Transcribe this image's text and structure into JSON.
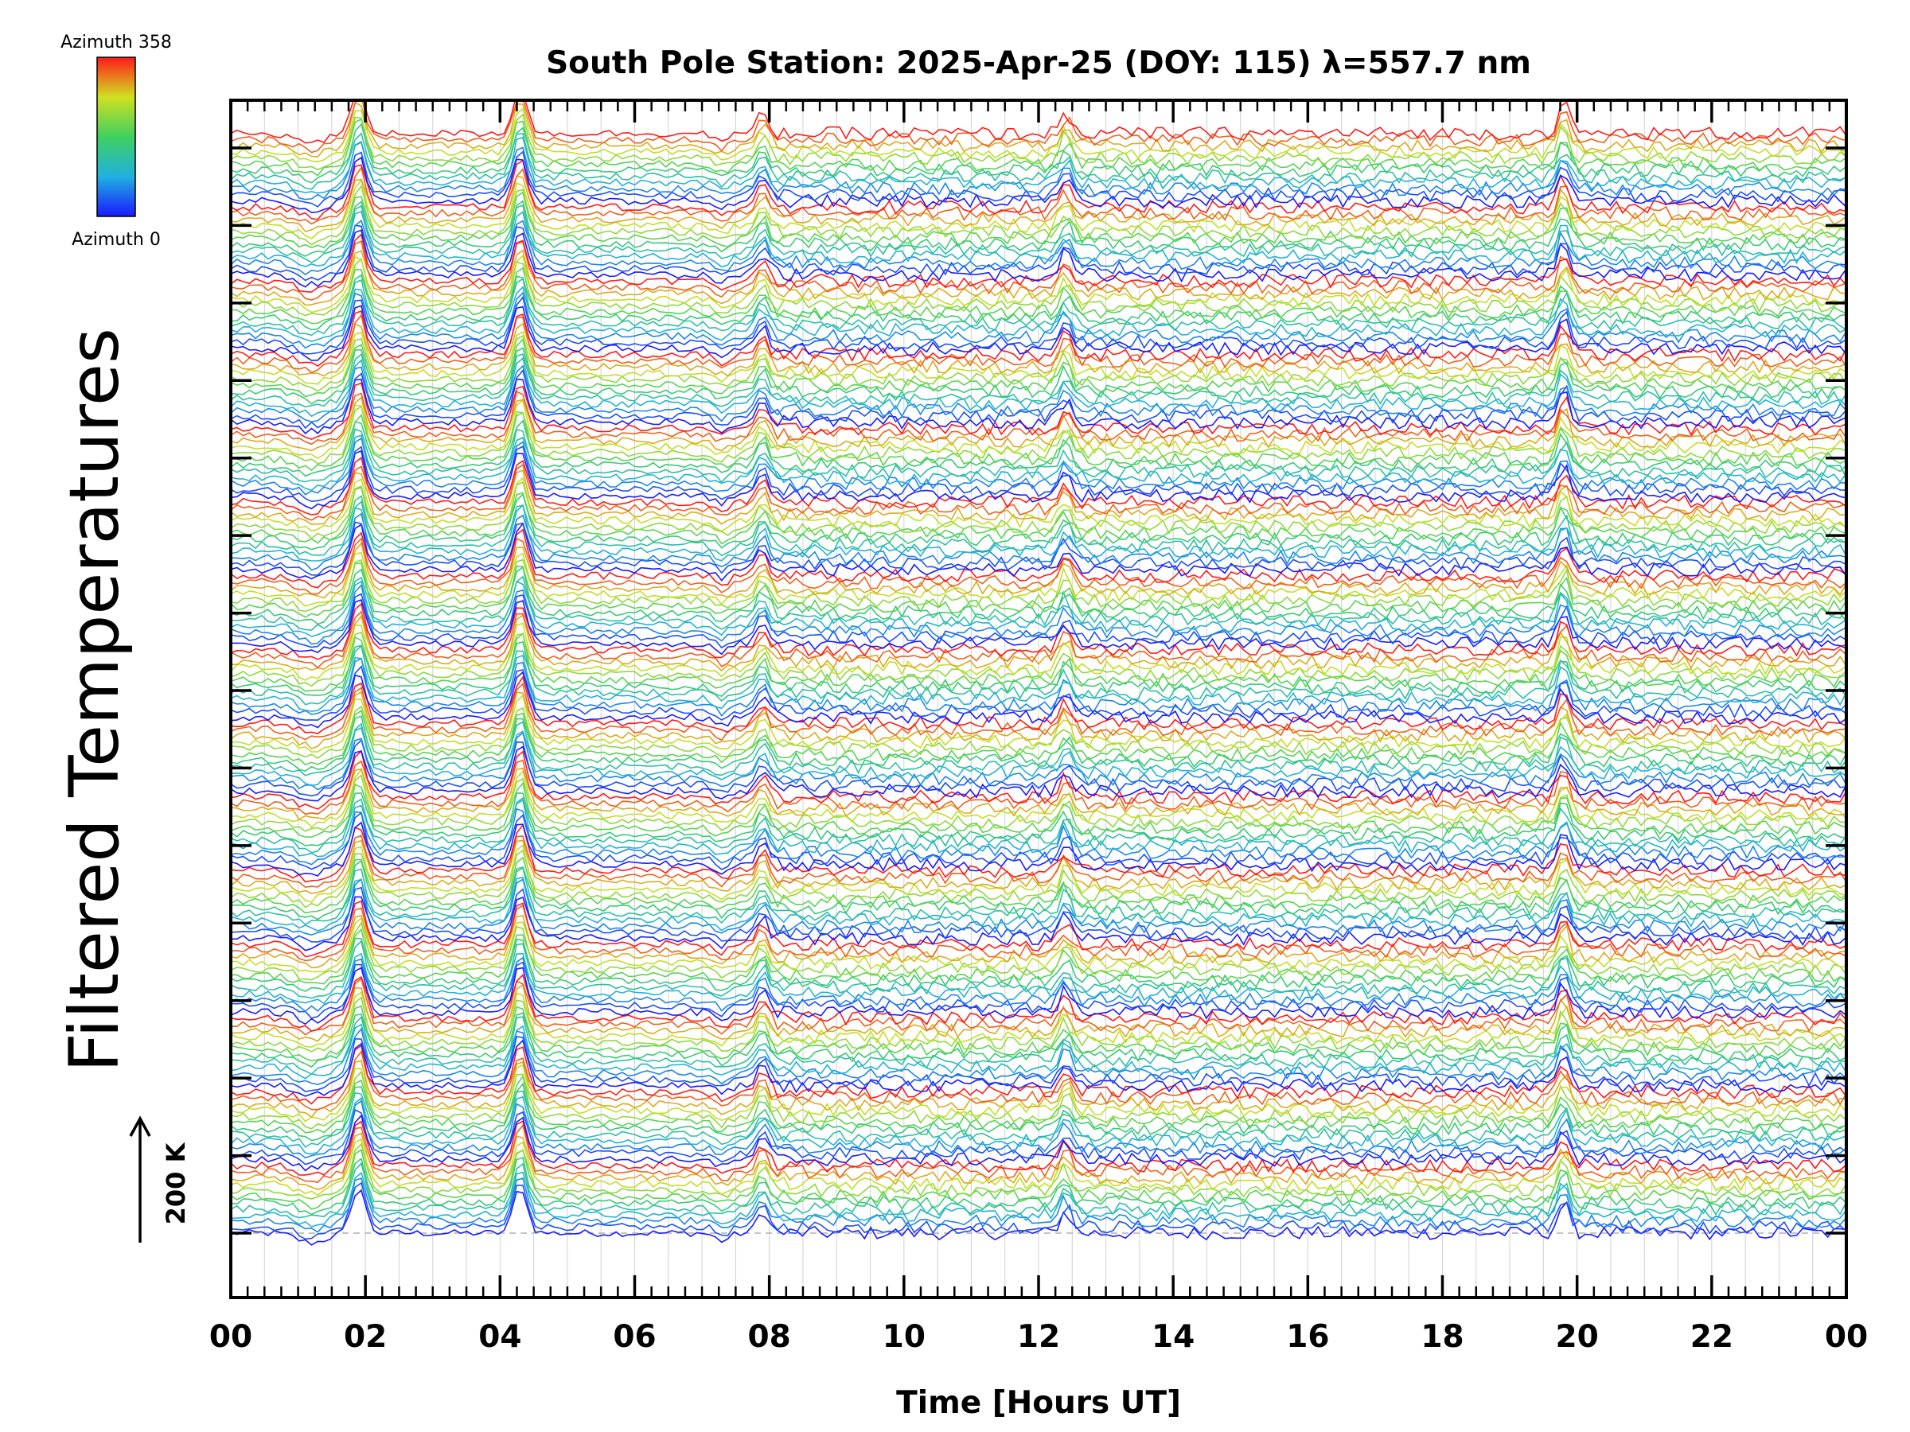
{
  "chart_data": {
    "type": "line",
    "title": "South Pole Station: 2025-Apr-25 (DOY: 115) λ=557.7 nm",
    "xlabel": "Time [Hours UT]",
    "ylabel": "Filtered Temperatures",
    "x_ticks": [
      "00",
      "02",
      "04",
      "06",
      "08",
      "10",
      "12",
      "14",
      "16",
      "18",
      "20",
      "22",
      "00"
    ],
    "xlim_hours": [
      0,
      24
    ],
    "y_scale_label": "200 K",
    "y_scale_kelvin": 200,
    "y_offset_ticks": 15,
    "colorbar": {
      "label_top": "Azimuth 358",
      "label_bottom": "Azimuth 0",
      "min_azimuth": 0,
      "max_azimuth": 358,
      "colormap": "rainbow"
    },
    "series_count": 180,
    "series_groups": 15,
    "peak_times_hours": [
      1.9,
      4.3,
      7.9,
      12.4,
      19.8
    ],
    "grid": true,
    "colors": {
      "low_azimuth": "#1a1aff",
      "mid_azimuth": "#40d060",
      "high_azimuth": "#ff1a1a",
      "gridline": "#d0d0d0",
      "baseline": "#b0b0b0"
    }
  }
}
